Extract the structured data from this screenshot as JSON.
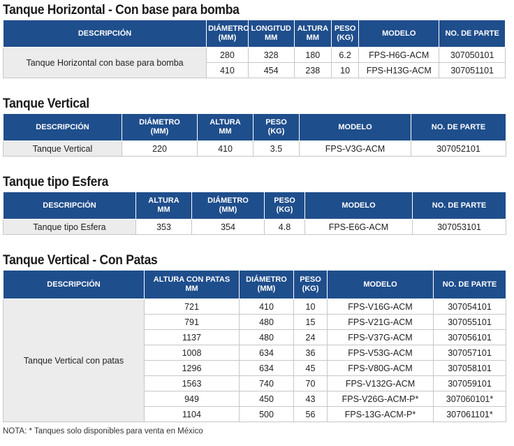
{
  "sections": [
    {
      "title": "Tanque Horizontal - Con base para bomba",
      "headers": [
        "DESCRIPCIÓN",
        "DIÁMETRO\n(MM)",
        "LONGITUD\nMM",
        "ALTURA\nMM",
        "PESO\n(KG)",
        "MODELO",
        "NO. DE PARTE"
      ],
      "description": "Tanque Horizontal con base para bomba",
      "rows": [
        [
          "280",
          "328",
          "180",
          "6.2",
          "FPS-H6G-ACM",
          "307050101"
        ],
        [
          "410",
          "454",
          "238",
          "10",
          "FPS-H13G-ACM",
          "307051101"
        ]
      ]
    },
    {
      "title": "Tanque Vertical",
      "headers": [
        "DESCRIPCIÓN",
        "DIÁMETRO\n(MM)",
        "ALTURA\nMM",
        "PESO\n(KG)",
        "MODELO",
        "NO. DE PARTE"
      ],
      "description": "Tanque Vertical",
      "rows": [
        [
          "220",
          "410",
          "3.5",
          "FPS-V3G-ACM",
          "307052101"
        ]
      ]
    },
    {
      "title": "Tanque tipo Esfera",
      "headers": [
        "DESCRIPCIÓN",
        "ALTURA\nMM",
        "DIÁMETRO\n(MM)",
        "PESO\n(KG)",
        "MODELO",
        "NO. DE PARTE"
      ],
      "description": "Tanque tipo Esfera",
      "rows": [
        [
          "353",
          "354",
          "4.8",
          "FPS-E6G-ACM",
          "307053101"
        ]
      ]
    },
    {
      "title": "Tanque Vertical - Con Patas",
      "headers": [
        "DESCRIPCIÓN",
        "ALTURA CON PATAS\nMM",
        "DIÁMETRO\n(MM)",
        "PESO\n(KG)",
        "MODELO",
        "NO. DE PARTE"
      ],
      "description": "Tanque Vertical con patas",
      "rows": [
        [
          "721",
          "410",
          "10",
          "FPS-V16G-ACM",
          "307054101"
        ],
        [
          "791",
          "480",
          "15",
          "FPS-V21G-ACM",
          "307055101"
        ],
        [
          "1137",
          "480",
          "24",
          "FPS-V37G-ACM",
          "307056101"
        ],
        [
          "1008",
          "634",
          "36",
          "FPS-V53G-ACM",
          "307057101"
        ],
        [
          "1296",
          "634",
          "45",
          "FPS-V80G-ACM",
          "307058101"
        ],
        [
          "1563",
          "740",
          "70",
          "FPS-V132G-ACM",
          "307059101"
        ],
        [
          "949",
          "450",
          "43",
          "FPS-V26G-ACM-P*",
          "307060101*"
        ],
        [
          "1104",
          "500",
          "56",
          "FPS-13G-ACM-P*",
          "307061101*"
        ]
      ]
    }
  ],
  "note": "NOTA: * Tanques solo disponibles para venta en México"
}
